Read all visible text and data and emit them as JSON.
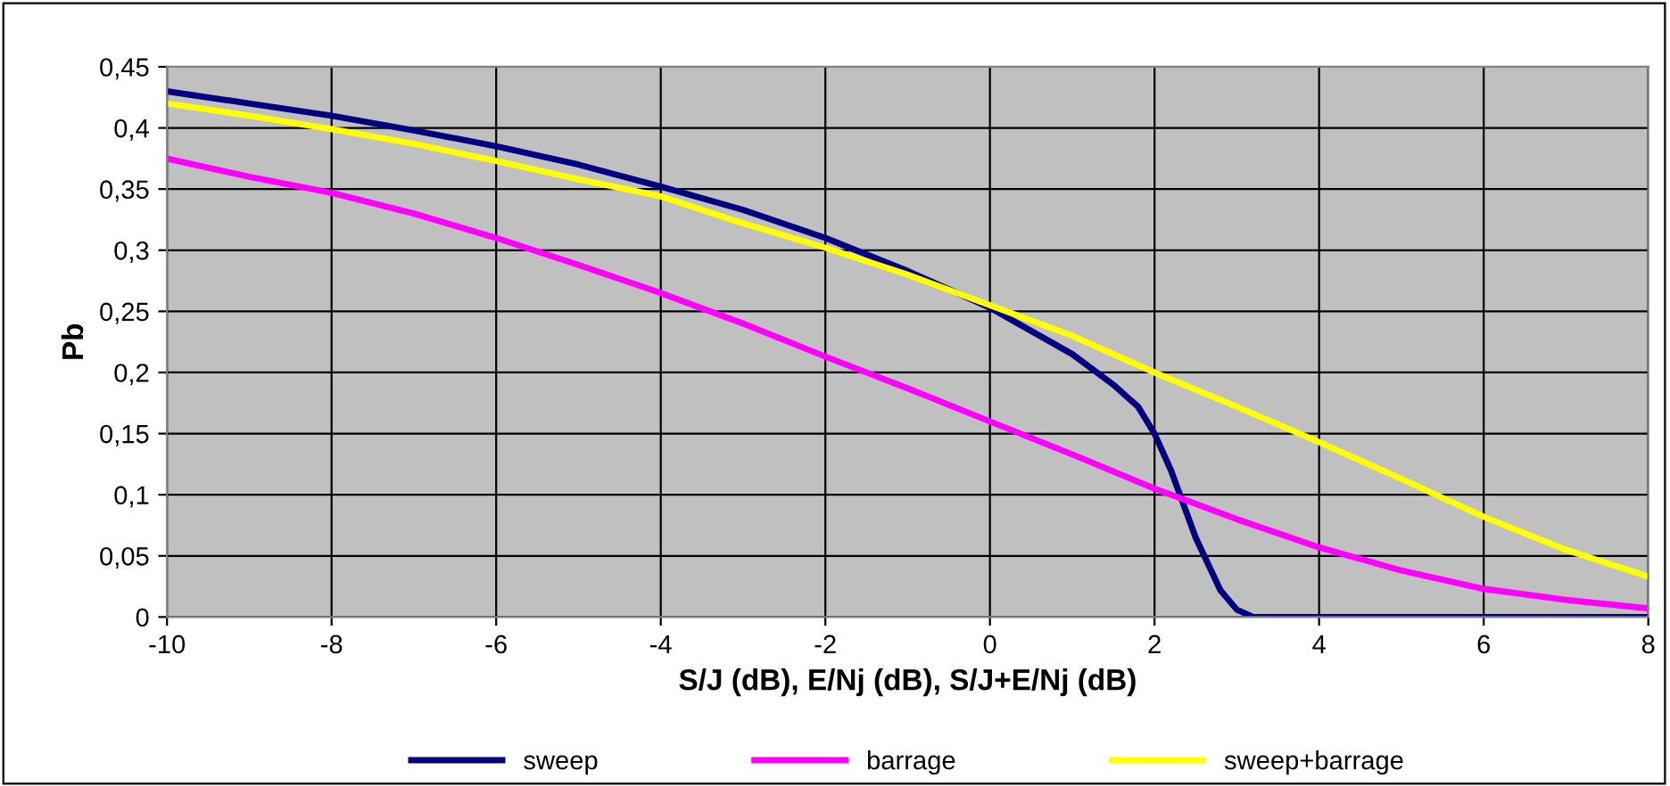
{
  "chart_data": {
    "type": "line",
    "xlabel": "S/J (dB), E/Nj (dB), S/J+E/Nj (dB)",
    "ylabel": "Pb",
    "x": [
      -10,
      -9,
      -8,
      -7,
      -6,
      -5,
      -4,
      -3,
      -2,
      -1,
      0,
      1,
      1.5,
      1.8,
      2,
      2.2,
      2.5,
      2.8,
      3,
      3.2,
      4,
      5,
      6,
      7,
      8
    ],
    "series": [
      {
        "name": "sweep",
        "color": "#000080",
        "values": [
          0.43,
          0.42,
          0.41,
          0.398,
          0.385,
          0.37,
          0.352,
          0.333,
          0.31,
          0.283,
          0.253,
          0.215,
          0.19,
          0.172,
          0.15,
          0.12,
          0.065,
          0.022,
          0.006,
          0,
          0,
          0,
          0,
          0,
          0
        ]
      },
      {
        "name": "barrage",
        "color": "#ff00ff",
        "x": [
          -10,
          -9,
          -8,
          -7,
          -6,
          -5,
          -4,
          -3,
          -2,
          -1,
          0,
          1,
          2,
          3,
          4,
          5,
          6,
          7,
          8
        ],
        "values": [
          0.375,
          0.36,
          0.347,
          0.33,
          0.31,
          0.288,
          0.265,
          0.24,
          0.213,
          0.187,
          0.16,
          0.133,
          0.105,
          0.08,
          0.057,
          0.038,
          0.023,
          0.014,
          0.007
        ]
      },
      {
        "name": "sweep+barrage",
        "color": "#ffff00",
        "x": [
          -10,
          -9,
          -8,
          -7,
          -6,
          -5,
          -4,
          -3,
          -2,
          -1,
          0,
          1,
          2,
          3,
          4,
          5,
          6,
          7,
          8
        ],
        "values": [
          0.42,
          0.41,
          0.399,
          0.387,
          0.373,
          0.358,
          0.344,
          0.322,
          0.302,
          0.28,
          0.255,
          0.23,
          0.2,
          0.172,
          0.143,
          0.113,
          0.082,
          0.055,
          0.033
        ]
      }
    ],
    "xlim": [
      -10,
      8
    ],
    "xticks": [
      -10,
      -8,
      -6,
      -4,
      -2,
      0,
      2,
      4,
      6,
      8
    ],
    "ylim": [
      0,
      0.45
    ],
    "yticks": [
      0,
      {
        "value": 0.05,
        "label": "0,05"
      },
      {
        "value": 0.1,
        "label": "0,1"
      },
      {
        "value": 0.15,
        "label": "0,15"
      },
      {
        "value": 0.2,
        "label": "0,2"
      },
      {
        "value": 0.25,
        "label": "0,25"
      },
      {
        "value": 0.3,
        "label": "0,3"
      },
      {
        "value": 0.35,
        "label": "0,35"
      },
      {
        "value": 0.4,
        "label": "0,4"
      },
      {
        "value": 0.45,
        "label": "0,45"
      }
    ],
    "grid": true,
    "legend": "bottom",
    "marker": "none",
    "line_style": "solid"
  }
}
